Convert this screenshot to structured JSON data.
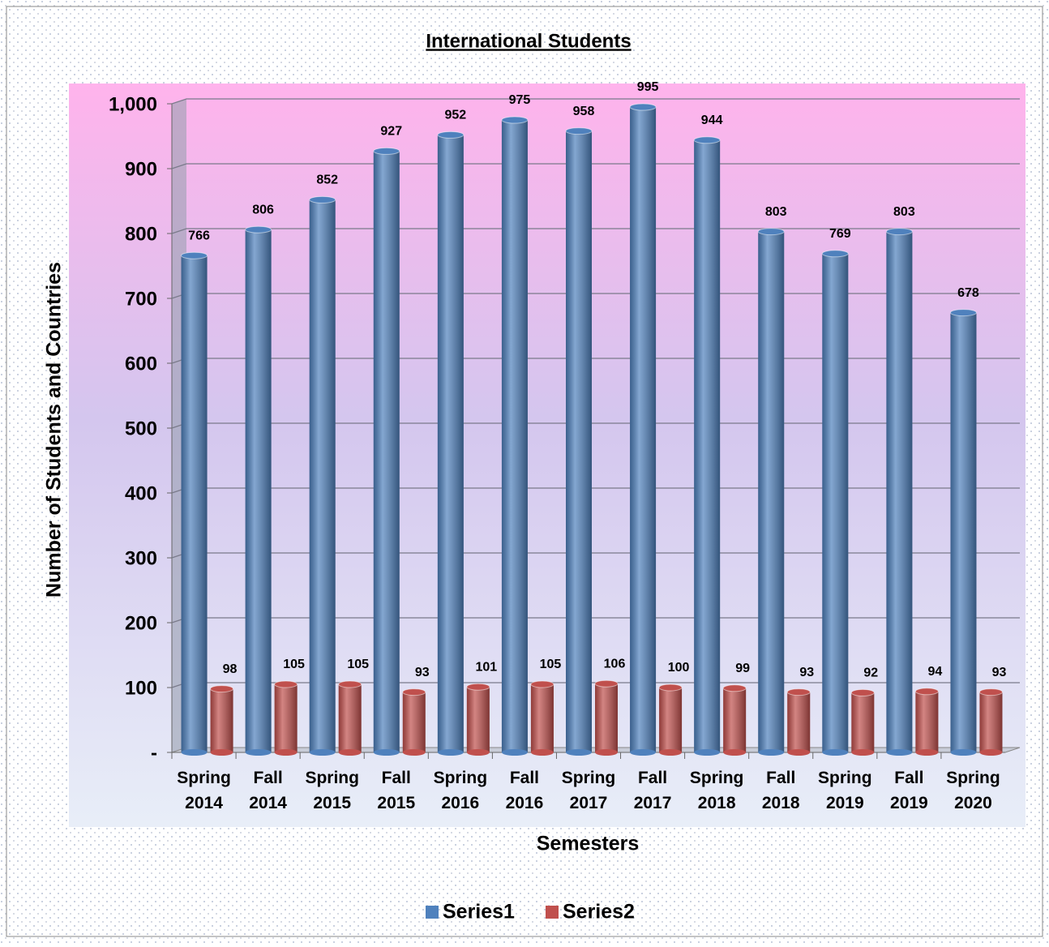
{
  "chart_data": {
    "type": "bar",
    "title": "International Students",
    "x_label": "Semesters",
    "y_label": "Number of Students and Countries",
    "categories": [
      "Spring 2014",
      "Fall 2014",
      "Spring 2015",
      "Fall 2015",
      "Spring 2016",
      "Fall 2016",
      "Spring 2017",
      "Fall 2017",
      "Spring 2018",
      "Fall 2018",
      "Spring 2019",
      "Fall 2019",
      "Spring 2020"
    ],
    "series": [
      {
        "name": "Series1",
        "color": "#4f81bd",
        "values": [
          766,
          806,
          852,
          927,
          952,
          975,
          958,
          995,
          944,
          803,
          769,
          803,
          678
        ]
      },
      {
        "name": "Series2",
        "color": "#c0504d",
        "values": [
          98,
          105,
          105,
          93,
          101,
          105,
          106,
          100,
          99,
          93,
          92,
          94,
          93
        ]
      }
    ],
    "ylim": [
      0,
      1000
    ],
    "yticks": [
      {
        "value": 0,
        "label": "-"
      },
      100,
      200,
      300,
      400,
      500,
      600,
      700,
      800,
      900,
      {
        "value": 1000,
        "label": "1,000"
      }
    ],
    "grid": true,
    "legend": "bottom"
  }
}
